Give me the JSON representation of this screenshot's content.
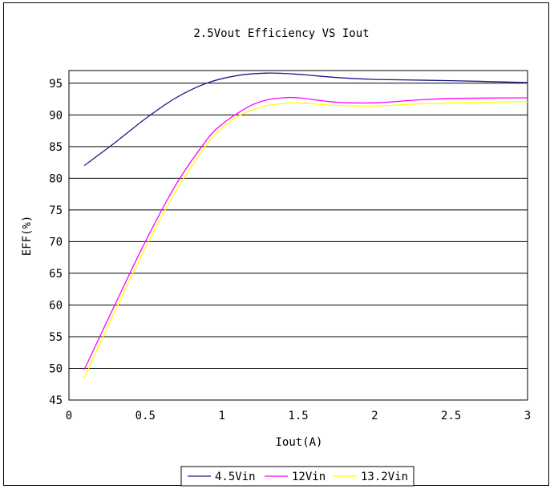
{
  "chart_data": {
    "type": "line",
    "title": "2.5Vout Efficiency VS Iout",
    "xlabel": "Iout(A)",
    "ylabel": "EFF(%)",
    "xlim": [
      0,
      3
    ],
    "ylim": [
      45,
      97
    ],
    "xticks": [
      "0",
      "0.5",
      "1",
      "1.5",
      "2",
      "2.5",
      "3"
    ],
    "yticks": [
      "45",
      "50",
      "55",
      "60",
      "65",
      "70",
      "75",
      "80",
      "85",
      "90",
      "95"
    ],
    "grid": "horizontal",
    "legend_position": "bottom",
    "series": [
      {
        "name": "4.5Vin",
        "color": "#1a1a8c",
        "x": [
          0.1,
          0.3,
          0.5,
          0.7,
          0.9,
          1.1,
          1.3,
          1.5,
          1.75,
          2.0,
          2.5,
          3.0
        ],
        "y": [
          82.0,
          85.6,
          89.4,
          92.7,
          95.0,
          96.2,
          96.6,
          96.4,
          95.9,
          95.6,
          95.4,
          95.1
        ]
      },
      {
        "name": "12Vin",
        "color": "#ff00ff",
        "x": [
          0.1,
          0.3,
          0.5,
          0.7,
          0.9,
          1.0,
          1.1,
          1.2,
          1.3,
          1.4,
          1.5,
          1.75,
          2.0,
          2.25,
          2.5,
          3.0
        ],
        "y": [
          49.8,
          60.0,
          70.0,
          79.0,
          86.0,
          88.5,
          90.2,
          91.6,
          92.4,
          92.7,
          92.7,
          92.0,
          91.9,
          92.3,
          92.6,
          92.7
        ]
      },
      {
        "name": "13.2Vin",
        "color": "#ffff00",
        "x": [
          0.1,
          0.3,
          0.5,
          0.7,
          0.9,
          1.0,
          1.1,
          1.2,
          1.3,
          1.4,
          1.5,
          1.75,
          2.0,
          2.25,
          2.5,
          3.0
        ],
        "y": [
          48.5,
          59.0,
          69.0,
          78.0,
          85.3,
          87.9,
          89.7,
          90.8,
          91.5,
          91.8,
          91.9,
          91.5,
          91.4,
          91.7,
          91.9,
          92.1
        ]
      }
    ]
  }
}
